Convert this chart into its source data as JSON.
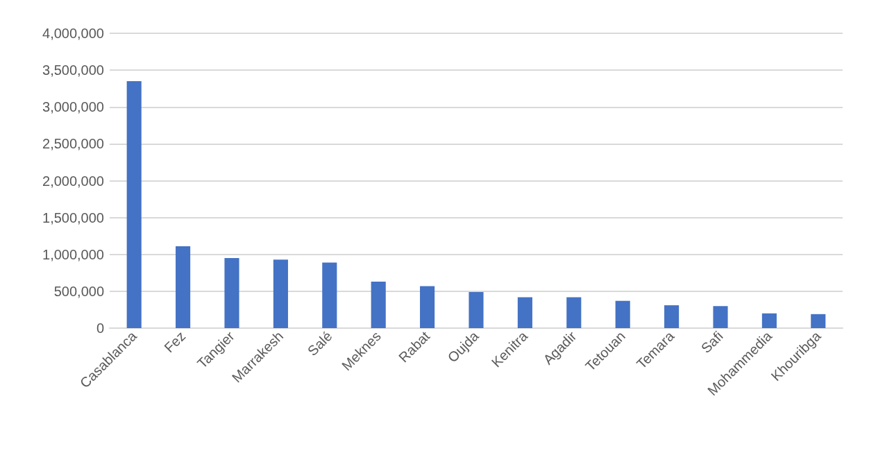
{
  "chart_data": {
    "type": "bar",
    "categories": [
      "Casablanca",
      "Fez",
      "Tangier",
      "Marrakesh",
      "Salé",
      "Meknes",
      "Rabat",
      "Oujda",
      "Kenitra",
      "Agadir",
      "Tetouan",
      "Temara",
      "Safi",
      "Mohammedia",
      "Khouribga"
    ],
    "values": [
      3350000,
      1110000,
      950000,
      930000,
      890000,
      630000,
      570000,
      490000,
      420000,
      420000,
      370000,
      310000,
      300000,
      200000,
      190000
    ],
    "color": "#4472c4",
    "ylim": [
      0,
      4000000
    ],
    "yticks": [
      0,
      {
        "value": 500000,
        "label": "500,000"
      },
      {
        "value": 1000000,
        "label": "1,000,000"
      },
      {
        "value": 1500000,
        "label": "1,500,000"
      },
      {
        "value": 2000000,
        "label": "2,000,000"
      },
      {
        "value": 2500000,
        "label": "2,500,000"
      },
      {
        "value": 3000000,
        "label": "3,000,000"
      },
      {
        "value": 3500000,
        "label": "3,500,000"
      },
      {
        "value": 4000000,
        "label": "4,000,000"
      }
    ],
    "grid": "y"
  }
}
